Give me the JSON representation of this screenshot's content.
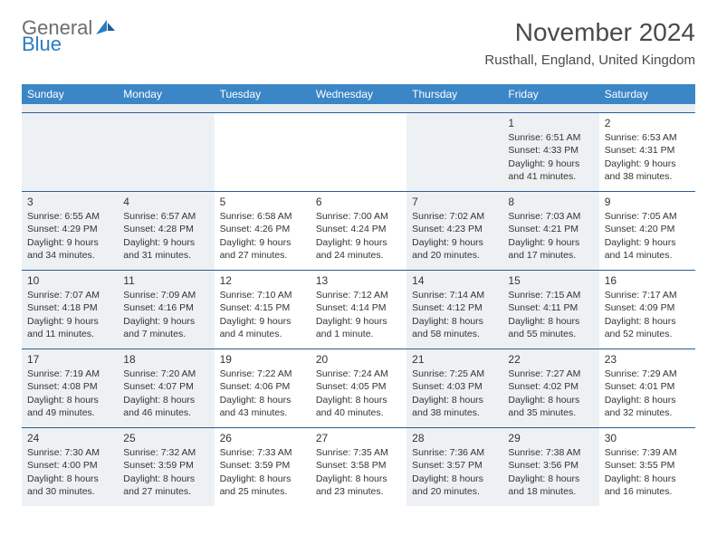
{
  "logo": {
    "word1": "General",
    "word2": "Blue",
    "sail_color": "#2b7cc0",
    "word1_color": "#6d6d6d",
    "word2_color": "#2b7cc0"
  },
  "title": "November 2024",
  "location": "Rusthall, England, United Kingdom",
  "colors": {
    "header_bg": "#3b86c6",
    "header_text": "#ffffff",
    "divider": "#2c5f8d",
    "shade_bg": "#eef1f4",
    "spacer_bg": "#e9edf1",
    "text": "#333333"
  },
  "day_names": [
    "Sunday",
    "Monday",
    "Tuesday",
    "Wednesday",
    "Thursday",
    "Friday",
    "Saturday"
  ],
  "shade_columns": [
    0,
    1,
    4,
    5
  ],
  "weeks": [
    [
      null,
      null,
      null,
      null,
      null,
      {
        "n": "1",
        "sr": "6:51 AM",
        "ss": "4:33 PM",
        "dl": "9 hours and 41 minutes."
      },
      {
        "n": "2",
        "sr": "6:53 AM",
        "ss": "4:31 PM",
        "dl": "9 hours and 38 minutes."
      }
    ],
    [
      {
        "n": "3",
        "sr": "6:55 AM",
        "ss": "4:29 PM",
        "dl": "9 hours and 34 minutes."
      },
      {
        "n": "4",
        "sr": "6:57 AM",
        "ss": "4:28 PM",
        "dl": "9 hours and 31 minutes."
      },
      {
        "n": "5",
        "sr": "6:58 AM",
        "ss": "4:26 PM",
        "dl": "9 hours and 27 minutes."
      },
      {
        "n": "6",
        "sr": "7:00 AM",
        "ss": "4:24 PM",
        "dl": "9 hours and 24 minutes."
      },
      {
        "n": "7",
        "sr": "7:02 AM",
        "ss": "4:23 PM",
        "dl": "9 hours and 20 minutes."
      },
      {
        "n": "8",
        "sr": "7:03 AM",
        "ss": "4:21 PM",
        "dl": "9 hours and 17 minutes."
      },
      {
        "n": "9",
        "sr": "7:05 AM",
        "ss": "4:20 PM",
        "dl": "9 hours and 14 minutes."
      }
    ],
    [
      {
        "n": "10",
        "sr": "7:07 AM",
        "ss": "4:18 PM",
        "dl": "9 hours and 11 minutes."
      },
      {
        "n": "11",
        "sr": "7:09 AM",
        "ss": "4:16 PM",
        "dl": "9 hours and 7 minutes."
      },
      {
        "n": "12",
        "sr": "7:10 AM",
        "ss": "4:15 PM",
        "dl": "9 hours and 4 minutes."
      },
      {
        "n": "13",
        "sr": "7:12 AM",
        "ss": "4:14 PM",
        "dl": "9 hours and 1 minute."
      },
      {
        "n": "14",
        "sr": "7:14 AM",
        "ss": "4:12 PM",
        "dl": "8 hours and 58 minutes."
      },
      {
        "n": "15",
        "sr": "7:15 AM",
        "ss": "4:11 PM",
        "dl": "8 hours and 55 minutes."
      },
      {
        "n": "16",
        "sr": "7:17 AM",
        "ss": "4:09 PM",
        "dl": "8 hours and 52 minutes."
      }
    ],
    [
      {
        "n": "17",
        "sr": "7:19 AM",
        "ss": "4:08 PM",
        "dl": "8 hours and 49 minutes."
      },
      {
        "n": "18",
        "sr": "7:20 AM",
        "ss": "4:07 PM",
        "dl": "8 hours and 46 minutes."
      },
      {
        "n": "19",
        "sr": "7:22 AM",
        "ss": "4:06 PM",
        "dl": "8 hours and 43 minutes."
      },
      {
        "n": "20",
        "sr": "7:24 AM",
        "ss": "4:05 PM",
        "dl": "8 hours and 40 minutes."
      },
      {
        "n": "21",
        "sr": "7:25 AM",
        "ss": "4:03 PM",
        "dl": "8 hours and 38 minutes."
      },
      {
        "n": "22",
        "sr": "7:27 AM",
        "ss": "4:02 PM",
        "dl": "8 hours and 35 minutes."
      },
      {
        "n": "23",
        "sr": "7:29 AM",
        "ss": "4:01 PM",
        "dl": "8 hours and 32 minutes."
      }
    ],
    [
      {
        "n": "24",
        "sr": "7:30 AM",
        "ss": "4:00 PM",
        "dl": "8 hours and 30 minutes."
      },
      {
        "n": "25",
        "sr": "7:32 AM",
        "ss": "3:59 PM",
        "dl": "8 hours and 27 minutes."
      },
      {
        "n": "26",
        "sr": "7:33 AM",
        "ss": "3:59 PM",
        "dl": "8 hours and 25 minutes."
      },
      {
        "n": "27",
        "sr": "7:35 AM",
        "ss": "3:58 PM",
        "dl": "8 hours and 23 minutes."
      },
      {
        "n": "28",
        "sr": "7:36 AM",
        "ss": "3:57 PM",
        "dl": "8 hours and 20 minutes."
      },
      {
        "n": "29",
        "sr": "7:38 AM",
        "ss": "3:56 PM",
        "dl": "8 hours and 18 minutes."
      },
      {
        "n": "30",
        "sr": "7:39 AM",
        "ss": "3:55 PM",
        "dl": "8 hours and 16 minutes."
      }
    ]
  ],
  "labels": {
    "sunrise": "Sunrise:",
    "sunset": "Sunset:",
    "daylight": "Daylight:"
  }
}
